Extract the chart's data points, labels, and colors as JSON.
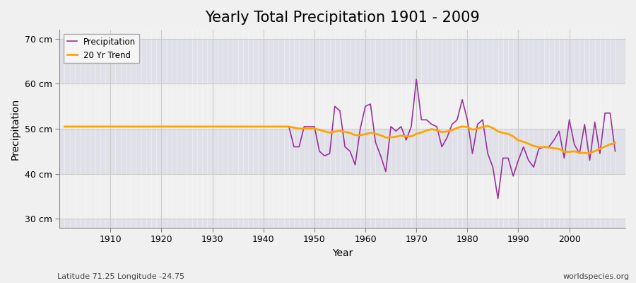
{
  "title": "Yearly Total Precipitation 1901 - 2009",
  "xlabel": "Year",
  "ylabel": "Precipitation",
  "subtitle": "Latitude 71.25 Longitude -24.75",
  "watermark": "worldspecies.org",
  "years": [
    1901,
    1902,
    1903,
    1904,
    1905,
    1906,
    1907,
    1908,
    1909,
    1910,
    1911,
    1912,
    1913,
    1914,
    1915,
    1916,
    1917,
    1918,
    1919,
    1920,
    1921,
    1922,
    1923,
    1924,
    1925,
    1926,
    1927,
    1928,
    1929,
    1930,
    1931,
    1932,
    1933,
    1934,
    1935,
    1936,
    1937,
    1938,
    1939,
    1940,
    1941,
    1942,
    1943,
    1944,
    1945,
    1946,
    1947,
    1948,
    1949,
    1950,
    1951,
    1952,
    1953,
    1954,
    1955,
    1956,
    1957,
    1958,
    1959,
    1960,
    1961,
    1962,
    1963,
    1964,
    1965,
    1966,
    1967,
    1968,
    1969,
    1970,
    1971,
    1972,
    1973,
    1974,
    1975,
    1976,
    1977,
    1978,
    1979,
    1980,
    1981,
    1982,
    1983,
    1984,
    1985,
    1986,
    1987,
    1988,
    1989,
    1990,
    1991,
    1992,
    1993,
    1994,
    1995,
    1996,
    1997,
    1998,
    1999,
    2000,
    2001,
    2002,
    2003,
    2004,
    2005,
    2006,
    2007,
    2008,
    2009
  ],
  "precip": [
    50.5,
    50.5,
    50.5,
    50.5,
    50.5,
    50.5,
    50.5,
    50.5,
    50.5,
    50.5,
    50.5,
    50.5,
    50.5,
    50.5,
    50.5,
    50.5,
    50.5,
    50.5,
    50.5,
    50.5,
    50.5,
    50.5,
    50.5,
    50.5,
    50.5,
    50.5,
    50.5,
    50.5,
    50.5,
    50.5,
    50.5,
    50.5,
    50.5,
    50.5,
    50.5,
    50.5,
    50.5,
    50.5,
    50.5,
    50.5,
    50.5,
    50.5,
    50.5,
    50.5,
    50.5,
    46.0,
    46.0,
    50.5,
    50.5,
    50.5,
    45.0,
    44.0,
    44.5,
    55.0,
    54.0,
    46.0,
    45.0,
    42.0,
    50.0,
    55.0,
    55.5,
    47.0,
    44.0,
    40.5,
    50.5,
    49.5,
    50.5,
    47.5,
    50.5,
    61.0,
    52.0,
    52.0,
    51.0,
    50.5,
    46.0,
    48.0,
    51.0,
    52.0,
    56.5,
    52.0,
    44.5,
    51.0,
    52.0,
    44.5,
    41.5,
    34.5,
    43.5,
    43.5,
    39.5,
    43.0,
    46.0,
    43.0,
    41.5,
    45.5,
    46.0,
    46.0,
    47.5,
    49.5,
    43.5,
    52.0,
    46.5,
    44.5,
    51.0,
    43.0,
    51.5,
    44.5,
    53.5,
    53.5,
    45.0
  ],
  "precip_color": "#993399",
  "trend_color": "#FFA500",
  "bg_color": "#F0F0F0",
  "plot_bg_light": "#F0F0F0",
  "plot_bg_dark": "#E0E0E8",
  "band_edges": [
    28,
    30,
    40,
    50,
    60,
    70,
    72
  ],
  "ylim": [
    28,
    72
  ],
  "yticks": [
    30,
    40,
    50,
    60,
    70
  ],
  "ytick_labels": [
    "30 cm",
    "40 cm",
    "50 cm",
    "60 cm",
    "70 cm"
  ],
  "xlim": [
    1900,
    2011
  ],
  "xticks": [
    1910,
    1920,
    1930,
    1940,
    1950,
    1960,
    1970,
    1980,
    1990,
    2000
  ],
  "legend_labels": [
    "Precipitation",
    "20 Yr Trend"
  ],
  "title_fontsize": 15,
  "axis_label_fontsize": 10,
  "tick_fontsize": 9,
  "grid_color": "#CCCCCC",
  "spine_color": "#888888"
}
